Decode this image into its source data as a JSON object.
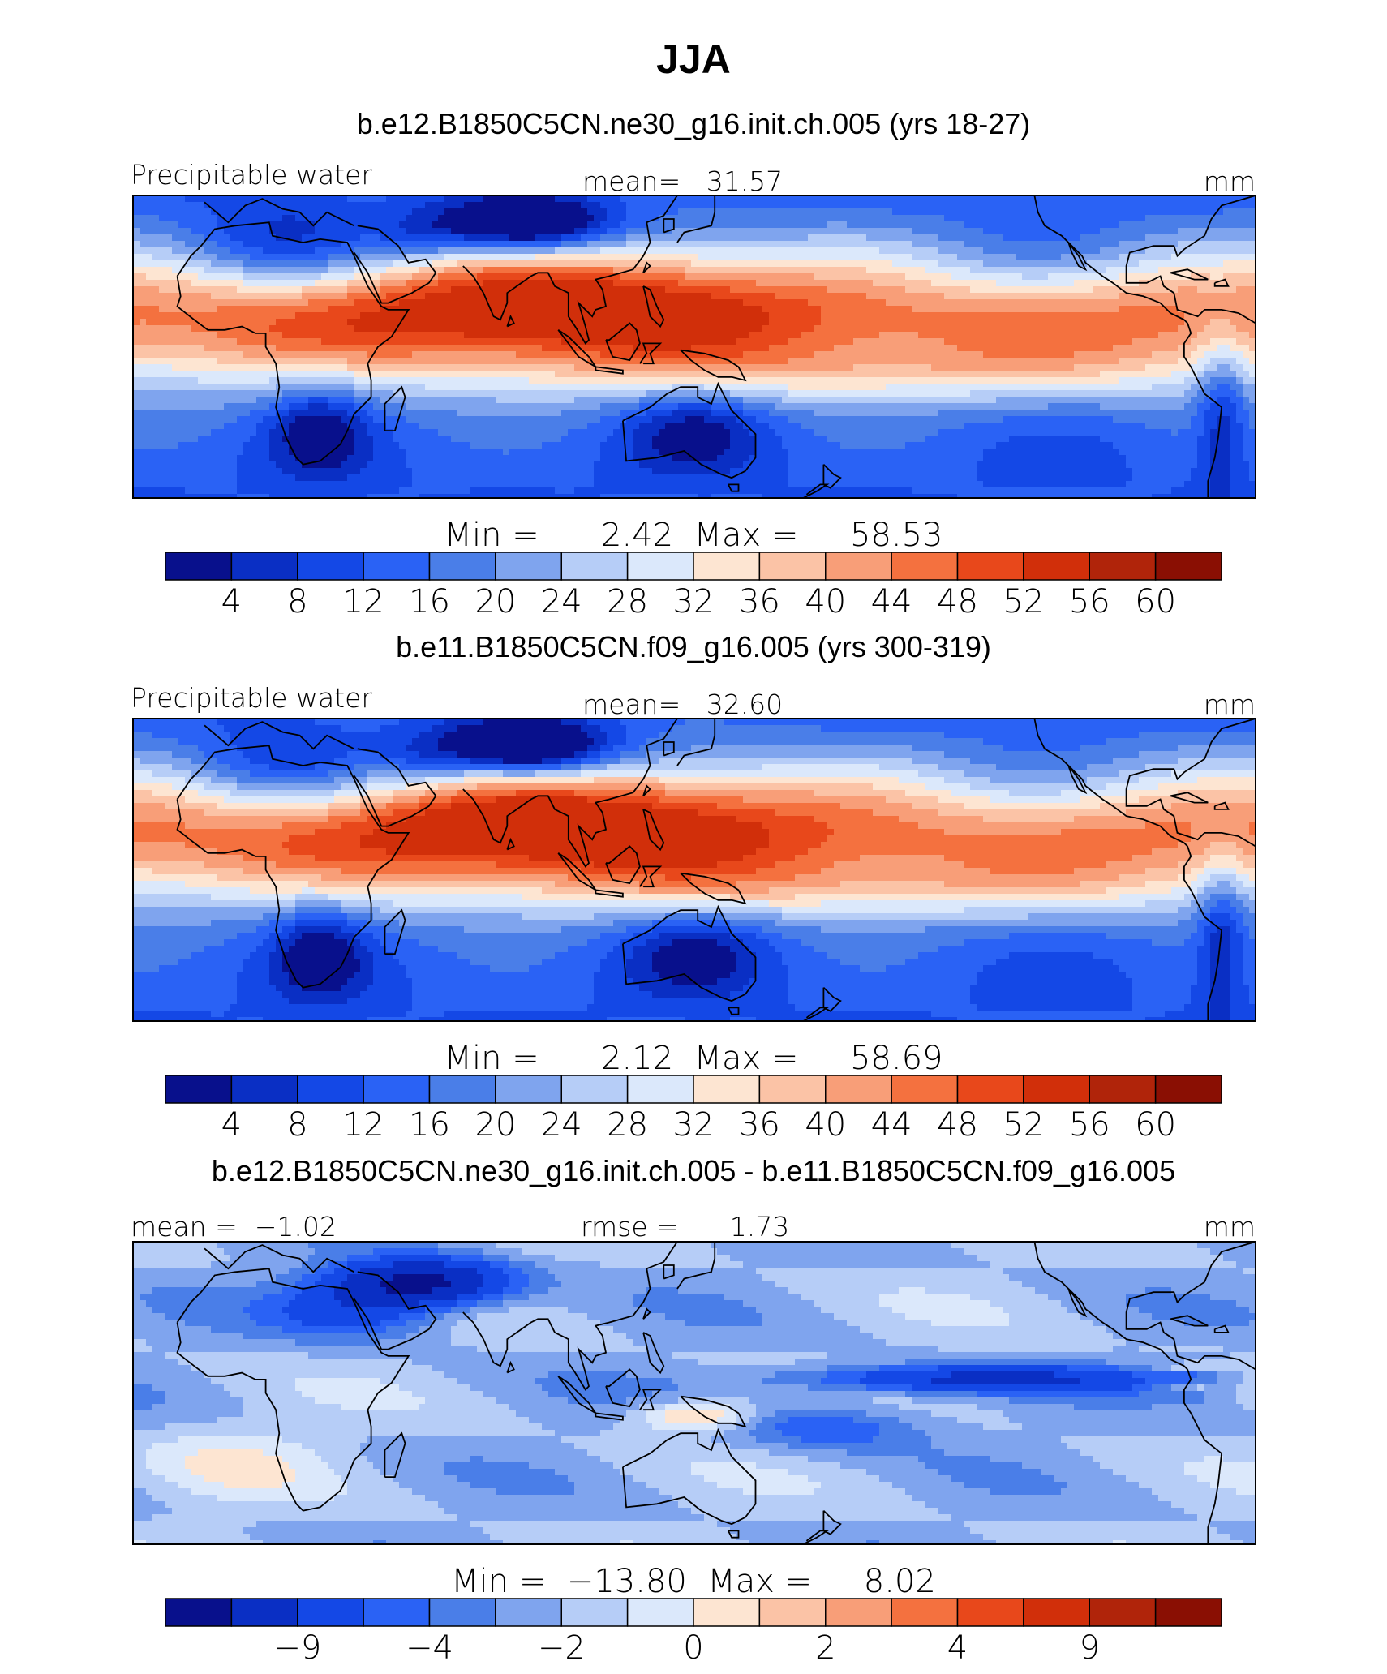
{
  "season_title": "JJA",
  "colors": [
    "#08108c",
    "#0a2fc4",
    "#1448e6",
    "#2a62f5",
    "#4a7ee8",
    "#7fa4ee",
    "#b6cdf7",
    "#dbe8fb",
    "#fde5d2",
    "#fbc3a6",
    "#f89e78",
    "#f4713f",
    "#e8481b",
    "#d12f0a",
    "#b0240a",
    "#8a0f03"
  ],
  "land_outline_color": "#000000",
  "panels": [
    {
      "id": "model-1",
      "title": "b.e12.B1850C5CN.ne30_g16.init.ch.005 (yrs 18-27)",
      "left_label": "Precipitable water",
      "center_label": "mean=   31.57",
      "right_label": "mm",
      "minmax": "Min =      2.42  Max =     58.53",
      "colorbar_ticks": [
        "4",
        "8",
        "12",
        "16",
        "20",
        "24",
        "28",
        "32",
        "36",
        "40",
        "44",
        "48",
        "52",
        "56",
        "60"
      ],
      "field": {
        "kind": "abs",
        "itcz_lat": 8,
        "pac_band_lat": -8,
        "tibet_dry": 1.0,
        "max_level": 13
      }
    },
    {
      "id": "model-2",
      "title": "b.e11.B1850C5CN.f09_g16.005 (yrs 300-319)",
      "left_label": "Precipitable water",
      "center_label": "mean=   32.60",
      "right_label": "mm",
      "minmax": "Min =      2.12  Max =     58.69",
      "colorbar_ticks": [
        "4",
        "8",
        "12",
        "16",
        "20",
        "24",
        "28",
        "32",
        "36",
        "40",
        "44",
        "48",
        "52",
        "56",
        "60"
      ],
      "field": {
        "kind": "abs",
        "itcz_lat": 10,
        "pac_band_lat": -6,
        "tibet_dry": 1.1,
        "max_level": 13
      }
    },
    {
      "id": "difference",
      "title": "b.e12.B1850C5CN.ne30_g16.init.ch.005 - b.e11.B1850C5CN.f09_g16.005",
      "left_label": "mean =  −1.02",
      "center_label": "rmse =      1.73",
      "right_label": "mm",
      "minmax": "Min =  −13.80  Max =     8.02",
      "colorbar_ticks": [
        "−9",
        "−4",
        "−2",
        "0",
        "2",
        "4",
        "9"
      ],
      "field": {
        "kind": "diff"
      }
    }
  ]
}
